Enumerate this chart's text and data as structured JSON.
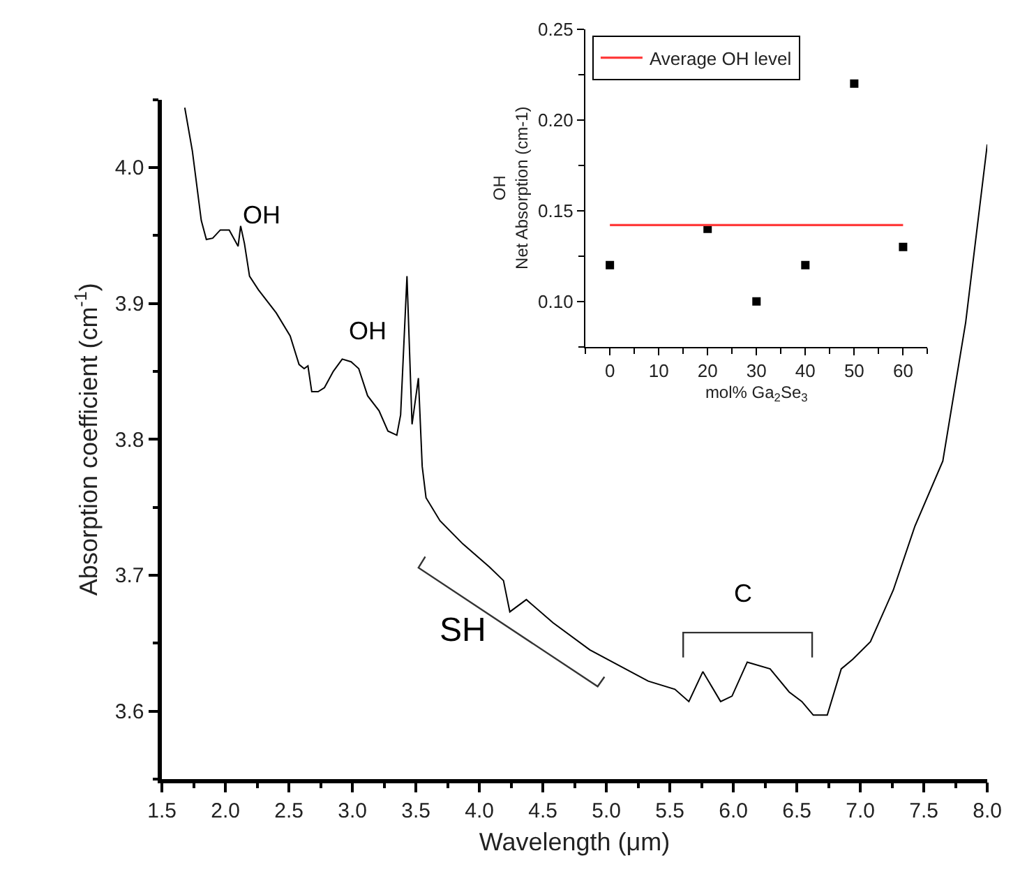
{
  "chart_data": [
    {
      "type": "line",
      "xlabel": "Wavelength (μm)",
      "ylabel": "Absorption coefficient (cm$^{-1}$)",
      "x": [
        1.68,
        1.74,
        1.81,
        1.85,
        1.9,
        1.96,
        2.03,
        2.1,
        2.12,
        2.15,
        2.19,
        2.26,
        2.4,
        2.51,
        2.58,
        2.62,
        2.65,
        2.68,
        2.73,
        2.78,
        2.85,
        2.92,
        2.99,
        3.05,
        3.12,
        3.21,
        3.28,
        3.35,
        3.38,
        3.43,
        3.47,
        3.52,
        3.55,
        3.58,
        3.69,
        3.87,
        4.08,
        4.19,
        4.24,
        4.37,
        4.58,
        4.87,
        5.15,
        5.33,
        5.54,
        5.65,
        5.76,
        5.9,
        5.99,
        6.11,
        6.29,
        6.44,
        6.54,
        6.63,
        6.74,
        6.85,
        6.94,
        7.08,
        7.26,
        7.43,
        7.65,
        7.83,
        8.0
      ],
      "series": [
        {
          "color": "#000000",
          "values": [
            4.044,
            4.012,
            3.961,
            3.947,
            3.948,
            3.954,
            3.954,
            3.942,
            3.957,
            3.944,
            3.92,
            3.91,
            3.893,
            3.876,
            3.855,
            3.852,
            3.854,
            3.835,
            3.835,
            3.838,
            3.85,
            3.859,
            3.857,
            3.852,
            3.832,
            3.821,
            3.806,
            3.803,
            3.818,
            3.92,
            3.811,
            3.845,
            3.78,
            3.757,
            3.74,
            3.723,
            3.706,
            3.696,
            3.673,
            3.682,
            3.665,
            3.645,
            3.631,
            3.622,
            3.616,
            3.607,
            3.629,
            3.607,
            3.611,
            3.636,
            3.631,
            3.614,
            3.607,
            3.597,
            3.597,
            3.631,
            3.638,
            3.651,
            3.689,
            3.736,
            3.784,
            3.886,
            4.017
          ]
        }
      ],
      "xlim": [
        1.5,
        8.0
      ],
      "ylim": [
        3.55,
        4.05
      ],
      "xticks": [
        1.5,
        {
          "value": 2,
          "label": "2.0"
        },
        2.5,
        {
          "value": 3,
          "label": "3.0"
        },
        3.5,
        {
          "value": 4,
          "label": "4.0"
        },
        4.5,
        {
          "value": 5,
          "label": "5.0"
        },
        5.5,
        {
          "value": 6,
          "label": "6.0"
        },
        6.5,
        {
          "value": 7,
          "label": "7.0"
        },
        7.5,
        {
          "value": 8,
          "label": "8.0"
        }
      ],
      "yticks": [
        3.6,
        3.7,
        3.8,
        3.9,
        {
          "value": 4,
          "label": "4.0"
        }
      ],
      "annotations": [
        "OH",
        "OH",
        "SH",
        "C"
      ],
      "marker": "none",
      "line_style": "solid"
    },
    {
      "type": "scatter",
      "xlabel": "mol% Ga$_{2}$Se$_{3}$",
      "ylabel": "OH\nNet Absorption (cm-1)",
      "series": [
        {
          "color": "#000000",
          "x": [
            0,
            20,
            30,
            40,
            50,
            60
          ],
          "values": [
            0.12,
            0.14,
            0.1,
            0.12,
            0.22,
            0.13
          ],
          "marker": "square"
        },
        {
          "type": "line",
          "name": "Average OH level",
          "color": "#ff3b3b",
          "x": [
            0,
            60
          ],
          "values": [
            0.142,
            0.142
          ],
          "marker": "none",
          "line_style": "solid"
        }
      ],
      "xlim": [
        -5,
        65
      ],
      "ylim": [
        0.075,
        0.25
      ],
      "xticks": [
        0,
        10,
        20,
        30,
        40,
        50,
        60
      ],
      "yticks": [
        {
          "value": 0.1,
          "label": "0.10"
        },
        0.15,
        {
          "value": 0.2,
          "label": "0.20"
        },
        0.25
      ],
      "legend": "top left"
    }
  ]
}
